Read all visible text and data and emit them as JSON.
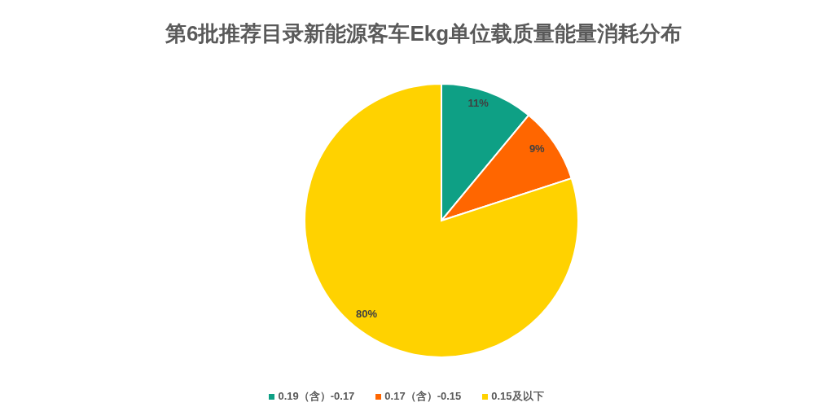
{
  "chart_data": {
    "type": "pie",
    "title": "第6批推荐目录新能源客车Ekg单位载质量能量消耗分布",
    "categories": [
      "0.19（含）-0.17",
      "0.17（含）-0.15",
      "0.15及以下"
    ],
    "values": [
      11,
      9,
      80
    ],
    "colors": [
      "#0ea085",
      "#ff6600",
      "#ffd200"
    ],
    "value_labels": [
      "11%",
      "9%",
      "80%"
    ],
    "legend": "bottom"
  }
}
